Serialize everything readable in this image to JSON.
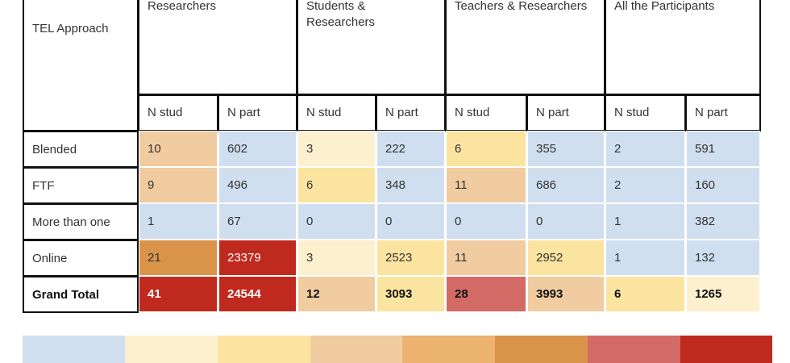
{
  "header": {
    "row_label": "TEL Approach",
    "groups": [
      "Researchers",
      "Students & Researchers",
      "Teachers & Researchers",
      "All the Participants"
    ],
    "subheaders": [
      "N stud",
      "N part",
      "N stud",
      "N part",
      "N stud",
      "N part",
      "N stud",
      "N part"
    ]
  },
  "rows": [
    {
      "label": "Blended",
      "cells": [
        10,
        602,
        3,
        222,
        6,
        355,
        2,
        591
      ],
      "colors": [
        "#f0cca0",
        "#cfdff0",
        "#fdf0cf",
        "#cfdff0",
        "#fbe4a0",
        "#cfdff0",
        "#cfdff0",
        "#cfdff0"
      ]
    },
    {
      "label": "FTF",
      "cells": [
        9,
        496,
        6,
        348,
        11,
        686,
        2,
        160
      ],
      "colors": [
        "#f0cca0",
        "#cfdff0",
        "#fbe4a0",
        "#cfdff0",
        "#f0cca0",
        "#cfdff0",
        "#cfdff0",
        "#cfdff0"
      ]
    },
    {
      "label": "More than one",
      "cells": [
        1,
        67,
        0,
        0,
        0,
        0,
        1,
        382
      ],
      "colors": [
        "#cfdff0",
        "#cfdff0",
        "#cfdff0",
        "#cfdff0",
        "#cfdff0",
        "#cfdff0",
        "#cfdff0",
        "#cfdff0"
      ]
    },
    {
      "label": "Online",
      "cells": [
        21,
        23379,
        3,
        2523,
        11,
        2952,
        1,
        132
      ],
      "colors": [
        "#d9944a",
        "#c0291e",
        "#fdf0cf",
        "#fbe4a0",
        "#f0cca0",
        "#fbe4a0",
        "#cfdff0",
        "#cfdff0"
      ]
    }
  ],
  "total": {
    "label": "Grand Total",
    "cells": [
      41,
      24544,
      12,
      3093,
      28,
      3993,
      6,
      1265
    ],
    "colors": [
      "#c0291e",
      "#c0291e",
      "#f0cca0",
      "#fbe4a0",
      "#d46a66",
      "#f0cca0",
      "#fbe4a0",
      "#fdf0cf"
    ]
  },
  "legend": {
    "colors": [
      "#cfdff0",
      "#fdf0cf",
      "#fbe4a0",
      "#f0cca0",
      "#ecb270",
      "#d9944a",
      "#d46a66",
      "#c0291e"
    ]
  }
}
